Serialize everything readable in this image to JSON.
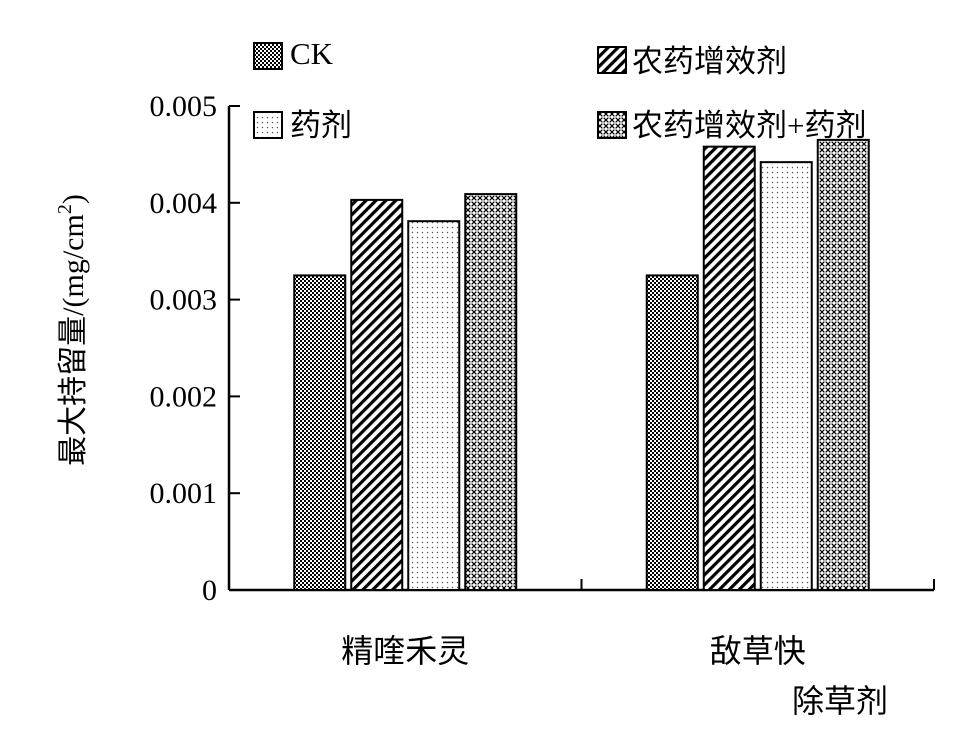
{
  "chart_data": {
    "type": "bar",
    "categories": [
      "精喹禾灵",
      "敌草快"
    ],
    "series": [
      {
        "name": "CK",
        "values": [
          0.00325,
          0.00325
        ]
      },
      {
        "name": "农药增效剂",
        "values": [
          0.00403,
          0.00458
        ]
      },
      {
        "name": "药剂",
        "values": [
          0.00381,
          0.00442
        ]
      },
      {
        "name": "农药增效剂+药剂",
        "values": [
          0.00409,
          0.00465
        ]
      }
    ],
    "ylabel_main": "最大持留量/(mg/cm",
    "ylabel_sup": "2",
    "ylabel_close": ")",
    "xlabel": "除草剂",
    "ylim": [
      0,
      0.005
    ],
    "yticks": [
      "0",
      "0.001",
      "0.002",
      "0.003",
      "0.004",
      "0.005"
    ],
    "grid": false,
    "legend_position": "top"
  },
  "patterns": [
    "dense-dots",
    "diagonal-hatch",
    "fine-dots",
    "crosshatch"
  ]
}
